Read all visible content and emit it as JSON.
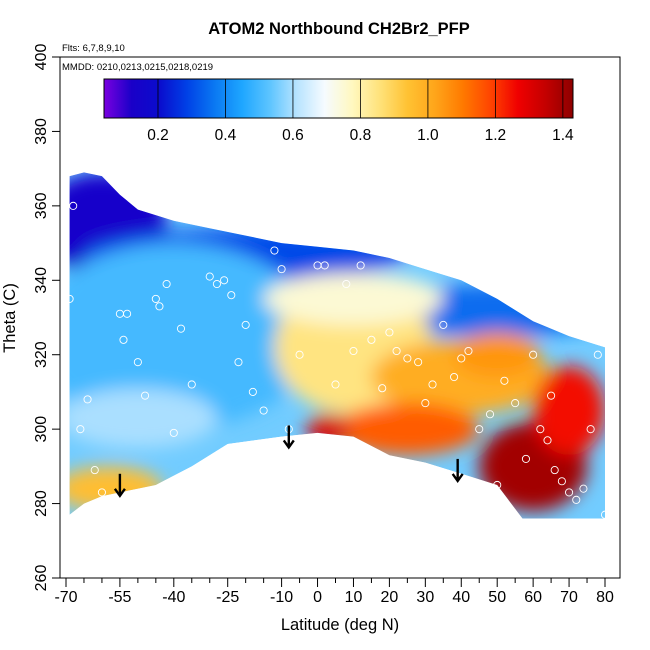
{
  "chart_data": {
    "type": "heatmap",
    "title": "ATOM2 Northbound CH2Br2_PFP",
    "annotations": [
      "Flts: 6,7,8,9,10",
      "MMDD: 0210,0213,0215,0218,0219"
    ],
    "xlabel": "Latitude (deg N)",
    "ylabel": "Theta (C)",
    "xlim": [
      -70,
      80
    ],
    "ylim": [
      260,
      400
    ],
    "x_ticks": [
      -70,
      -55,
      -40,
      -25,
      -10,
      0,
      10,
      20,
      30,
      40,
      50,
      60,
      70,
      80
    ],
    "x_tick_labels": [
      "-70",
      "-55",
      "-40",
      "-25",
      "-10",
      "0",
      "10",
      "20",
      "30",
      "40",
      "50",
      "60",
      "70",
      "80"
    ],
    "x_minor_ticks": [
      -65,
      -60,
      -50,
      -45,
      -35,
      -30,
      -20,
      -15,
      -5,
      5,
      15,
      25,
      35,
      45,
      55,
      65,
      75
    ],
    "y_ticks": [
      260,
      280,
      300,
      320,
      340,
      360,
      380,
      400
    ],
    "y_tick_labels": [
      "260",
      "280",
      "300",
      "320",
      "340",
      "360",
      "380",
      "400"
    ],
    "colorbar": {
      "range": [
        0.04,
        1.43
      ],
      "ticks": [
        0.2,
        0.4,
        0.6,
        0.8,
        1.0,
        1.2,
        1.4
      ],
      "tick_labels": [
        "0.2",
        "0.4",
        "0.6",
        "0.8",
        "1.0",
        "1.2",
        "1.4"
      ],
      "colors": [
        "#7a00e0",
        "#1a00c8",
        "#0a0ccd",
        "#0040e6",
        "#0a78f2",
        "#1ea6ff",
        "#5cc4ff",
        "#b8e4ff",
        "#f6fbff",
        "#fff8c0",
        "#ffe27a",
        "#ffc233",
        "#ffa51a",
        "#ff7a00",
        "#ff4500",
        "#f00000",
        "#c40000",
        "#8e0000"
      ]
    },
    "upper_boundary": [
      [
        -69,
        368
      ],
      [
        -65,
        369
      ],
      [
        -60,
        368
      ],
      [
        -55,
        363
      ],
      [
        -50,
        359
      ],
      [
        -40,
        356
      ],
      [
        -30,
        354
      ],
      [
        -20,
        352
      ],
      [
        -10,
        350
      ],
      [
        0,
        349
      ],
      [
        10,
        348
      ],
      [
        20,
        346
      ],
      [
        30,
        343
      ],
      [
        40,
        340
      ],
      [
        50,
        335
      ],
      [
        60,
        329
      ],
      [
        70,
        325
      ],
      [
        80,
        322
      ]
    ],
    "lower_boundary": [
      [
        -69,
        277
      ],
      [
        -65,
        280
      ],
      [
        -60,
        282
      ],
      [
        -55,
        283
      ],
      [
        -45,
        285
      ],
      [
        -35,
        290
      ],
      [
        -25,
        296
      ],
      [
        -10,
        298
      ],
      [
        0,
        299
      ],
      [
        10,
        298
      ],
      [
        20,
        293
      ],
      [
        30,
        291
      ],
      [
        40,
        288
      ],
      [
        50,
        285
      ],
      [
        57,
        276
      ],
      [
        80,
        276
      ]
    ],
    "regions": [
      {
        "center": [
          -60,
          355
        ],
        "radius": [
          18,
          14
        ],
        "value": 0.15
      },
      {
        "center": [
          -20,
          347
        ],
        "radius": [
          45,
          7
        ],
        "value": 0.3
      },
      {
        "center": [
          50,
          332
        ],
        "radius": [
          35,
          7
        ],
        "value": 0.35
      },
      {
        "center": [
          -40,
          325
        ],
        "radius": [
          40,
          25
        ],
        "value": 0.5
      },
      {
        "center": [
          -50,
          303
        ],
        "radius": [
          22,
          8
        ],
        "value": 0.6
      },
      {
        "center": [
          10,
          322
        ],
        "radius": [
          22,
          18
        ],
        "value": 0.85
      },
      {
        "center": [
          10,
          335
        ],
        "radius": [
          25,
          7
        ],
        "value": 0.75
      },
      {
        "center": [
          40,
          314
        ],
        "radius": [
          25,
          10
        ],
        "value": 1.0
      },
      {
        "center": [
          25,
          300
        ],
        "radius": [
          20,
          7
        ],
        "value": 1.15
      },
      {
        "center": [
          60,
          290
        ],
        "radius": [
          15,
          12
        ],
        "value": 1.4
      },
      {
        "center": [
          70,
          305
        ],
        "radius": [
          10,
          12
        ],
        "value": 1.25
      },
      {
        "center": [
          50,
          320
        ],
        "radius": [
          12,
          6
        ],
        "value": 1.05
      },
      {
        "center": [
          3,
          300
        ],
        "radius": [
          6,
          4
        ],
        "value": 1.3
      },
      {
        "center": [
          -58,
          284
        ],
        "radius": [
          15,
          6
        ],
        "value": 0.95
      }
    ],
    "sample_points": [
      [
        -68,
        360
      ],
      [
        -69,
        335
      ],
      [
        -66,
        300
      ],
      [
        -64,
        308
      ],
      [
        -62,
        289
      ],
      [
        -60,
        283
      ],
      [
        -55,
        331
      ],
      [
        -54,
        324
      ],
      [
        -53,
        331
      ],
      [
        -50,
        318
      ],
      [
        -48,
        309
      ],
      [
        -45,
        335
      ],
      [
        -44,
        333
      ],
      [
        -42,
        339
      ],
      [
        -40,
        299
      ],
      [
        -38,
        327
      ],
      [
        -35,
        312
      ],
      [
        -30,
        341
      ],
      [
        -28,
        339
      ],
      [
        -26,
        340
      ],
      [
        -24,
        336
      ],
      [
        -22,
        318
      ],
      [
        -20,
        328
      ],
      [
        -18,
        310
      ],
      [
        -15,
        305
      ],
      [
        -12,
        348
      ],
      [
        -10,
        343
      ],
      [
        -8,
        300
      ],
      [
        -5,
        320
      ],
      [
        0,
        344
      ],
      [
        2,
        344
      ],
      [
        5,
        312
      ],
      [
        8,
        339
      ],
      [
        10,
        321
      ],
      [
        12,
        344
      ],
      [
        15,
        324
      ],
      [
        18,
        311
      ],
      [
        20,
        326
      ],
      [
        22,
        321
      ],
      [
        25,
        319
      ],
      [
        28,
        318
      ],
      [
        30,
        307
      ],
      [
        32,
        312
      ],
      [
        35,
        328
      ],
      [
        38,
        314
      ],
      [
        40,
        319
      ],
      [
        42,
        321
      ],
      [
        45,
        300
      ],
      [
        48,
        304
      ],
      [
        50,
        285
      ],
      [
        52,
        313
      ],
      [
        55,
        307
      ],
      [
        58,
        292
      ],
      [
        60,
        320
      ],
      [
        62,
        300
      ],
      [
        64,
        297
      ],
      [
        65,
        309
      ],
      [
        66,
        289
      ],
      [
        68,
        286
      ],
      [
        70,
        283
      ],
      [
        72,
        281
      ],
      [
        74,
        284
      ],
      [
        76,
        300
      ],
      [
        78,
        320
      ],
      [
        80,
        277
      ]
    ],
    "arrows": [
      [
        -55,
        288
      ],
      [
        -8,
        301
      ],
      [
        39,
        292
      ]
    ]
  }
}
